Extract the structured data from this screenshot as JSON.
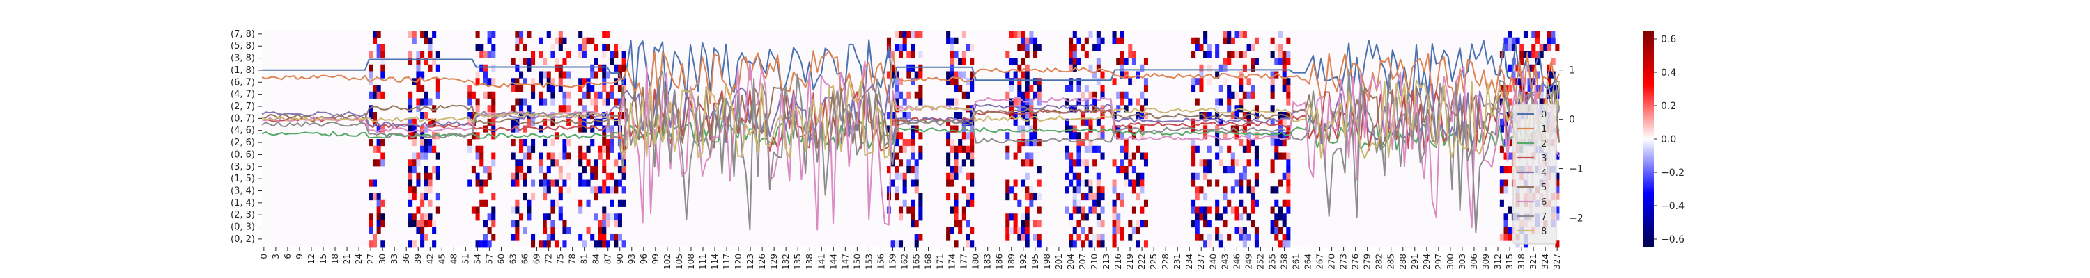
{
  "chart_data": [
    {
      "type": "heatmap",
      "title": "",
      "xlabel": "",
      "ylabel": "",
      "x": {
        "start": 0,
        "end": 327,
        "count": 328
      },
      "x_tick_labels": [
        "0",
        "3",
        "6",
        "9",
        "12",
        "15",
        "18",
        "21",
        "24",
        "27",
        "30",
        "33",
        "36",
        "39",
        "42",
        "45",
        "48",
        "51",
        "54",
        "57",
        "60",
        "63",
        "66",
        "69",
        "72",
        "75",
        "78",
        "81",
        "84",
        "87",
        "90",
        "93",
        "96",
        "99",
        "102",
        "105",
        "108",
        "111",
        "114",
        "117",
        "120",
        "123",
        "126",
        "129",
        "132",
        "135",
        "138",
        "141",
        "144",
        "147",
        "150",
        "153",
        "156",
        "159",
        "162",
        "165",
        "168",
        "171",
        "174",
        "177",
        "180",
        "183",
        "186",
        "189",
        "192",
        "195",
        "198",
        "201",
        "204",
        "207",
        "210",
        "213",
        "216",
        "219",
        "222",
        "225",
        "228",
        "231",
        "234",
        "237",
        "240",
        "243",
        "246",
        "249",
        "252",
        "255",
        "258",
        "261",
        "264",
        "267",
        "270",
        "273",
        "276",
        "279",
        "282",
        "285",
        "288",
        "291",
        "294",
        "297",
        "300",
        "303",
        "306",
        "309",
        "312",
        "315",
        "318",
        "321",
        "324",
        "327"
      ],
      "rows_total": 32,
      "y_tick_labels": [
        "(7, 8)",
        "(5, 8)",
        "(3, 8)",
        "(1, 8)",
        "(6, 7)",
        "(4, 7)",
        "(2, 7)",
        "(0, 7)",
        "(4, 6)",
        "(2, 6)",
        "(0, 6)",
        "(3, 5)",
        "(1, 5)",
        "(3, 4)",
        "(1, 4)",
        "(2, 3)",
        "(0, 3)",
        "(0, 2)"
      ],
      "colormap": "seismic",
      "colorbar": {
        "min": -0.65,
        "max": 0.65,
        "ticks": [
          0.6,
          0.4,
          0.2,
          0.0,
          -0.2,
          -0.4,
          -0.6
        ],
        "tick_labels": [
          "0.6",
          "0.4",
          "0.2",
          "0.0",
          "−0.2",
          "−0.4",
          "−0.6"
        ]
      },
      "active_column_blocks": [
        [
          27,
          30
        ],
        [
          37,
          44
        ],
        [
          52,
          58
        ],
        [
          63,
          68
        ],
        [
          70,
          77
        ],
        [
          80,
          87
        ],
        [
          88,
          91
        ],
        [
          158,
          166
        ],
        [
          173,
          179
        ],
        [
          188,
          196
        ],
        [
          203,
          212
        ],
        [
          215,
          223
        ],
        [
          235,
          239
        ],
        [
          241,
          251
        ],
        [
          255,
          259
        ],
        [
          313,
          327
        ]
      ],
      "value_range_note": ""
    },
    {
      "type": "line",
      "title": "",
      "xlabel": "",
      "ylabel": "",
      "x": {
        "start": 0,
        "end": 327
      },
      "ylim": [
        -2.6,
        1.8
      ],
      "y_ticks": [
        1,
        0,
        -1,
        -2
      ],
      "y_tick_labels": [
        "1",
        "0",
        "−1",
        "−2"
      ],
      "legend": {
        "placement": "right",
        "entries": [
          "0",
          "1",
          "2",
          "3",
          "4",
          "5",
          "6",
          "7",
          "8"
        ]
      },
      "series": [
        {
          "name": "0",
          "color": "#4c72b0",
          "base": 1.0,
          "amp": 0.45
        },
        {
          "name": "1",
          "color": "#dd8452",
          "base": 0.85,
          "amp": 0.35
        },
        {
          "name": "2",
          "color": "#55a868",
          "base": -0.3,
          "amp": 0.2
        },
        {
          "name": "3",
          "color": "#c44e52",
          "base": 0.0,
          "amp": 0.4
        },
        {
          "name": "4",
          "color": "#8172b3",
          "base": 0.1,
          "amp": 0.4
        },
        {
          "name": "5",
          "color": "#937860",
          "base": 0.05,
          "amp": 0.4
        },
        {
          "name": "6",
          "color": "#da8bc3",
          "base": 0.0,
          "amp": 0.8
        },
        {
          "name": "7",
          "color": "#8c8c8c",
          "base": -0.1,
          "amp": 0.7
        },
        {
          "name": "8",
          "color": "#ccb974",
          "base": 0.0,
          "amp": 0.5
        }
      ]
    }
  ]
}
